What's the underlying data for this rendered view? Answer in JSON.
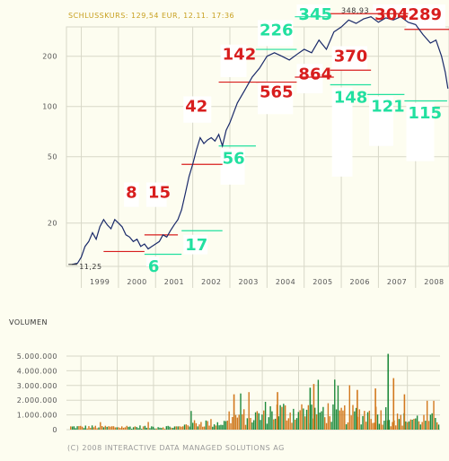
{
  "header": {
    "price_label": "SCHLUSSKURS: 129,54 EUR, 12.11. 17:36"
  },
  "volume_header": "VOLUMEN",
  "footer": "(C) 2008 INTERACTIVE DATA MANAGED SOLUTIONS AG",
  "colors": {
    "background": "#fdfdf0",
    "price_line": "#1a2a6a",
    "red": "#d81e1e",
    "green": "#22e0a0",
    "volume_green": "#1e8a3c",
    "volume_orange": "#d2781e",
    "title": "#c8a020"
  },
  "chart_data": [
    {
      "type": "line",
      "scale": "log",
      "yticks": [
        20,
        50,
        100,
        200
      ],
      "xticks": [
        "1999",
        "2000",
        "2001",
        "2002",
        "2003",
        "2004",
        "2005",
        "2006",
        "2007",
        "2008"
      ],
      "ylim": [
        11,
        300
      ],
      "xlim": [
        1998.6,
        2008.9
      ],
      "low_annotation": "11,25",
      "high_annotation": "348,93",
      "series": [
        {
          "x": [
            1998.75,
            1998.9,
            1999.0,
            1999.1,
            1999.2,
            1999.3,
            1999.4,
            1999.5,
            1999.6,
            1999.7,
            1999.8,
            1999.9,
            2000.0,
            2000.1,
            2000.2,
            2000.3,
            2000.4,
            2000.5,
            2000.6,
            2000.7,
            2000.8,
            2000.9,
            2001.0,
            2001.1,
            2001.2,
            2001.3,
            2001.4,
            2001.5,
            2001.6,
            2001.7,
            2001.8,
            2001.9,
            2002.0,
            2002.1,
            2002.2,
            2002.3,
            2002.4,
            2002.5,
            2002.6,
            2002.7,
            2002.8,
            2002.9,
            2003.0,
            2003.2,
            2003.4,
            2003.6,
            2003.8,
            2004.0,
            2004.2,
            2004.4,
            2004.6,
            2004.8,
            2005.0,
            2005.2,
            2005.4,
            2005.6,
            2005.8,
            2006.0,
            2006.2,
            2006.4,
            2006.6,
            2006.8,
            2007.0,
            2007.2,
            2007.4,
            2007.6,
            2007.8,
            2008.0,
            2008.2,
            2008.4,
            2008.55,
            2008.7,
            2008.8,
            2008.87
          ],
          "values": [
            11.3,
            11.5,
            12.5,
            14.5,
            15.5,
            17.5,
            16.0,
            19.0,
            21.0,
            19.5,
            18.5,
            21.0,
            20.0,
            19.0,
            17.0,
            16.5,
            15.5,
            16.0,
            14.5,
            15.0,
            14.0,
            14.5,
            15.0,
            15.5,
            17.0,
            16.5,
            18.0,
            19.5,
            21.0,
            24.0,
            30.0,
            38.0,
            45.0,
            55.0,
            65.0,
            60.0,
            63.0,
            65.0,
            62.0,
            68.0,
            58.0,
            72.0,
            80.0,
            105.0,
            125.0,
            150.0,
            170.0,
            200.0,
            210.0,
            200.0,
            190.0,
            205.0,
            220.0,
            210.0,
            250.0,
            220.0,
            280.0,
            300.0,
            330.0,
            315.0,
            335.0,
            345.0,
            320.0,
            340.0,
            330.0,
            345.0,
            320.0,
            310.0,
            270.0,
            240.0,
            250.0,
            200.0,
            160.0,
            128.0
          ]
        }
      ]
    },
    {
      "type": "bar",
      "yticks": [
        "0",
        "1.000.000",
        "2.000.000",
        "3.000.000",
        "4.000.000",
        "5.000.000"
      ],
      "ylim": [
        0,
        5000000
      ],
      "x_range": [
        1998.6,
        2008.9
      ],
      "spikes": [
        {
          "x": 2005.3,
          "value": 2850000,
          "color": "#1e8a3c"
        },
        {
          "x": 2005.4,
          "value": 3100000,
          "color": "#d2781e"
        },
        {
          "x": 2007.45,
          "value": 5150000,
          "color": "#1e8a3c"
        },
        {
          "x": 2007.6,
          "value": 3500000,
          "color": "#d2781e"
        },
        {
          "x": 2007.1,
          "value": 2800000,
          "color": "#d2781e"
        },
        {
          "x": 2003.2,
          "value": 2400000,
          "color": "#d2781e"
        },
        {
          "x": 2004.4,
          "value": 2550000,
          "color": "#d2781e"
        },
        {
          "x": 2006.6,
          "value": 2700000,
          "color": "#d2781e"
        },
        {
          "x": 2007.9,
          "value": 2400000,
          "color": "#d2781e"
        }
      ]
    }
  ],
  "annotations": [
    {
      "label": "8",
      "color": "#d81e1e",
      "x1": 1999.6,
      "x2": 2000.7,
      "y": 13.5,
      "bx1": 2000.15,
      "bx2": 2000.55,
      "by_top": 35.0,
      "by_bot": 25.0
    },
    {
      "label": "15",
      "color": "#d81e1e",
      "x1": 2000.7,
      "x2": 2001.6,
      "y": 17.0,
      "bx1": 2000.75,
      "bx2": 2001.3,
      "by_top": 35.0,
      "by_bot": 25.0
    },
    {
      "label": "6",
      "color": "#22e0a0",
      "x1": 2000.7,
      "x2": 2001.7,
      "y": 13.0,
      "bx1": 2000.75,
      "bx2": 2001.1,
      "by_top": 12.6,
      "by_bot": 11.0
    },
    {
      "label": "17",
      "color": "#22e0a0",
      "x1": 2001.7,
      "x2": 2002.8,
      "y": 18.0,
      "bx1": 2001.75,
      "bx2": 2002.4,
      "by_top": 17.0,
      "by_bot": 13.0
    },
    {
      "label": "42",
      "color": "#d81e1e",
      "x1": 2001.7,
      "x2": 2002.8,
      "y": 45.0,
      "bx1": 2001.75,
      "bx2": 2002.5,
      "by_top": 115.0,
      "by_bot": 80.0
    },
    {
      "label": "56",
      "color": "#22e0a0",
      "x1": 2002.7,
      "x2": 2003.7,
      "y": 58.0,
      "bx1": 2002.75,
      "bx2": 2003.4,
      "by_top": 56.0,
      "by_bot": 34.0
    },
    {
      "label": "142",
      "color": "#d81e1e",
      "x1": 2002.7,
      "x2": 2003.8,
      "y": 140.0,
      "bx1": 2002.75,
      "bx2": 2003.45,
      "by_top": 235.0,
      "by_bot": 150.0
    },
    {
      "label": "226",
      "color": "#22e0a0",
      "x1": 2003.7,
      "x2": 2004.8,
      "y": 220.0,
      "bx1": 2003.75,
      "bx2": 2004.7,
      "by_top": 330.0,
      "by_bot": 230.0
    },
    {
      "label": "565",
      "color": "#d81e1e",
      "x1": 2003.7,
      "x2": 2004.8,
      "y": 140.0,
      "bx1": 2003.75,
      "bx2": 2004.7,
      "by_top": 140.0,
      "by_bot": 90.0
    },
    {
      "label": "864",
      "color": "#d81e1e",
      "x1": 2004.75,
      "x2": 2005.8,
      "y": 150.0,
      "bx1": 2004.8,
      "bx2": 2005.5,
      "by_top": 180.0,
      "by_bot": 120.0
    },
    {
      "label": "345",
      "color": "#22e0a0",
      "x1": 2004.75,
      "x2": 2005.7,
      "y": 345.0,
      "bx1": 2004.8,
      "bx2": 2005.7,
      "by_top": 450.0,
      "by_bot": 340.0
    },
    {
      "label": "370",
      "color": "#d81e1e",
      "x1": 2005.7,
      "x2": 2006.8,
      "y": 165.0,
      "bx1": 2005.75,
      "bx2": 2006.7,
      "by_top": 230.0,
      "by_bot": 165.0
    },
    {
      "label": "148",
      "color": "#22e0a0",
      "x1": 2005.7,
      "x2": 2006.8,
      "y": 135.0,
      "bx1": 2005.75,
      "bx2": 2006.3,
      "by_top": 130.0,
      "by_bot": 38.0
    },
    {
      "label": "304",
      "color": "#d81e1e",
      "x1": 2005.7,
      "x2": 2007.8,
      "y": 360.0,
      "bx1": 2006.85,
      "bx2": 2007.8,
      "by_top": 450.0,
      "by_bot": 360.0
    },
    {
      "label": "121",
      "color": "#22e0a0",
      "x1": 2006.7,
      "x2": 2007.7,
      "y": 118.0,
      "bx1": 2006.75,
      "bx2": 2007.4,
      "by_top": 115.0,
      "by_bot": 58.0
    },
    {
      "label": "289",
      "color": "#d81e1e",
      "x1": 2007.7,
      "x2": 2008.95,
      "y": 290.0,
      "bx1": 2007.75,
      "bx2": 2008.8,
      "by_top": 450.0,
      "by_bot": 290.0
    },
    {
      "label": "115",
      "color": "#22e0a0",
      "x1": 2007.7,
      "x2": 2008.85,
      "y": 108.0,
      "bx1": 2007.75,
      "bx2": 2008.5,
      "by_top": 105.0,
      "by_bot": 47.0
    }
  ]
}
